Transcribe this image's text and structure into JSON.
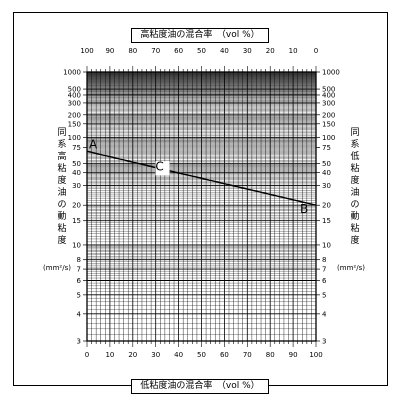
{
  "header": {
    "title": "高粘度油の混合率　（vol %）"
  },
  "footer": {
    "title": "低粘度油の混合率　（vol %）"
  },
  "left_axis": {
    "label": "同系高粘度油の動粘度",
    "unit": "(mm²/s)"
  },
  "right_axis": {
    "label": "同系低粘度油の動粘度",
    "unit": "(mm²/s)"
  },
  "chart_data": {
    "type": "line",
    "title": "",
    "x_top": {
      "label": "高粘度油の混合率　（vol %）",
      "ticks": [
        100,
        90,
        80,
        70,
        60,
        50,
        40,
        30,
        20,
        10,
        0
      ]
    },
    "x_bottom": {
      "label": "低粘度油の混合率　（vol %）",
      "ticks": [
        0,
        10,
        20,
        30,
        40,
        50,
        60,
        70,
        80,
        90,
        100
      ],
      "range": [
        0,
        100
      ]
    },
    "y": {
      "scale": "log-log",
      "range": [
        3,
        1000
      ],
      "tick_labels": [
        "1000",
        "500",
        "400",
        "300",
        "200",
        "150",
        "100",
        "75",
        "50",
        "40",
        "30",
        "20",
        "15",
        "10",
        "8",
        "7",
        "6",
        "5",
        "4",
        "3"
      ],
      "tick_values": [
        1000,
        500,
        400,
        300,
        200,
        150,
        100,
        75,
        50,
        40,
        30,
        20,
        15,
        10,
        8,
        7,
        6,
        5,
        4,
        3
      ]
    },
    "grid": true,
    "series": [
      {
        "points": [
          {
            "x": 0,
            "y": 68
          },
          {
            "x": 100,
            "y": 20
          }
        ]
      }
    ],
    "annotations": [
      {
        "text": "A",
        "x": 0,
        "y": 68
      },
      {
        "text": "C",
        "x": 33,
        "y": 50
      },
      {
        "text": "B",
        "x": 100,
        "y": 20
      }
    ]
  }
}
